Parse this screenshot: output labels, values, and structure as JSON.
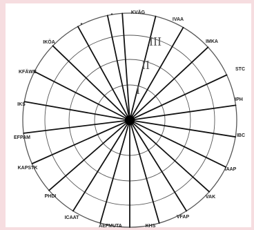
{
  "colors": {
    "background": "#f6dde0",
    "panel": "#ffffff",
    "thick_spoke": "#111111",
    "thin_spoke": "#333333",
    "ring": "#555555",
    "hub": "#000000"
  },
  "ring_labels": [
    "I",
    "II",
    "III"
  ],
  "spoke_labels": [
    "KVÄG",
    "IVAA",
    "IMKA",
    "STC",
    "IPH",
    "IBC",
    "IAAP",
    "VAK",
    "VFAP",
    "KHS",
    "AEFMUTA",
    "ICAAT",
    "PHDI",
    "KAPSTK",
    "EFPAM",
    "IKS",
    "KFÄWB",
    "IKÖA",
    "*",
    "*"
  ]
}
